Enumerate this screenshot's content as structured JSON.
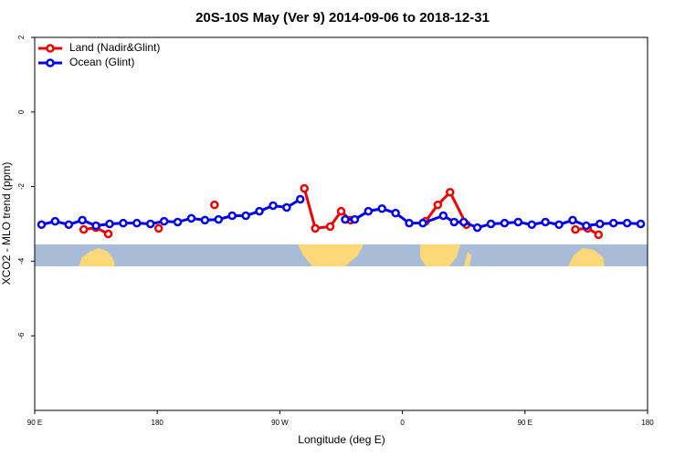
{
  "chart_data": {
    "type": "line",
    "title": "20S-10S May (Ver 9)   2014-09-06 to 2018-12-31",
    "xlabel": "Longitude (deg E)",
    "ylabel": "XCO2 - MLO trend (ppm)",
    "xlim": [
      90,
      540
    ],
    "xticks": [
      {
        "value": 90,
        "label": "90 E"
      },
      {
        "value": 180,
        "label": "180"
      },
      {
        "value": 270,
        "label": "90 W"
      },
      {
        "value": 360,
        "label": "0"
      },
      {
        "value": 450,
        "label": "90 E"
      },
      {
        "value": 540,
        "label": "180"
      }
    ],
    "ylim": [
      -8,
      2
    ],
    "yticks": [
      -6,
      -4,
      -2,
      0,
      2
    ],
    "legend": "top-left",
    "series": [
      {
        "name": "Land (Nadir&Glint)",
        "color": "#ee0000",
        "x": [
          126,
          135,
          144,
          160,
          181,
          200,
          222,
          250,
          288,
          296,
          307,
          315,
          322,
          350,
          377,
          386,
          395,
          407,
          450,
          487,
          496,
          504
        ],
        "values": [
          -3.15,
          -3.1,
          -3.27,
          null,
          -3.12,
          null,
          -2.49,
          null,
          -2.05,
          -3.12,
          -3.07,
          -2.66,
          -2.9,
          null,
          -2.93,
          -2.49,
          -2.15,
          -3.02,
          null,
          -3.15,
          -3.12,
          -3.29
        ]
      },
      {
        "name": "Ocean (Glint)",
        "color": "#0000ee",
        "x": [
          95,
          105,
          115,
          125,
          135,
          145,
          155,
          165,
          175,
          185,
          195,
          205,
          215,
          225,
          235,
          245,
          255,
          265,
          275,
          285,
          300,
          318,
          325,
          335,
          345,
          355,
          365,
          375,
          390,
          398,
          405,
          415,
          425,
          435,
          445,
          455,
          465,
          475,
          485,
          495,
          505,
          515,
          525,
          535
        ],
        "values": [
          -3.02,
          -2.93,
          -3.02,
          -2.9,
          -3.05,
          -3.0,
          -2.98,
          -2.98,
          -3.0,
          -2.93,
          -2.95,
          -2.85,
          -2.9,
          -2.88,
          -2.78,
          -2.78,
          -2.66,
          -2.51,
          -2.56,
          -2.34,
          null,
          -2.88,
          -2.88,
          -2.66,
          -2.59,
          -2.71,
          -2.98,
          -2.98,
          -2.78,
          -2.95,
          -2.95,
          -3.1,
          -3.0,
          -2.98,
          -2.95,
          -3.02,
          -2.95,
          -3.02,
          -2.9,
          -3.05,
          -3.0,
          -2.98,
          -2.98,
          -3.0
        ]
      }
    ]
  }
}
